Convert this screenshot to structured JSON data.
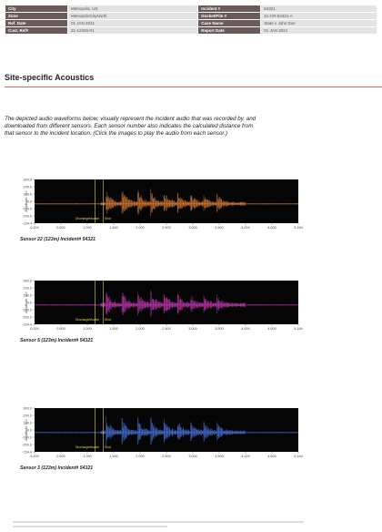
{
  "info_table": {
    "rows": [
      [
        "City",
        "Metropolis, US",
        "Incident #",
        "54321"
      ],
      [
        "Zone",
        "MetropolisCityNorth",
        "Docket/File #",
        "21-CR-54321-A"
      ],
      [
        "Ref. Date",
        "01 JAN 2021",
        "Case Name",
        "State v John Doe"
      ],
      [
        "Cust. Ref#",
        "21-12345-01",
        "Report Date",
        "01 JAN 2021"
      ]
    ]
  },
  "section": {
    "title": "Site-specific Acoustics",
    "intro_lines": [
      "The depicted audio waveforms below, visually represent the incident audio that was recorded by, and",
      "downloaded from different sensors.  Each sensor number also indicates the calculated distance from",
      "that sensor to the incident location. (Click the images to play the audio from each sensor.)"
    ]
  },
  "plots": [
    {
      "caption": "Sensor 22 (123m) Incident# 54321",
      "wave_color": "#f08a3c",
      "y_label": "Amplitude, mV",
      "marker_labels": [
        "DischargeMuzzle",
        "Shot"
      ],
      "yticks": [
        "300.0",
        "200.0",
        "100.0",
        "0.0",
        "-100.0",
        "-200.0",
        "-234.4"
      ],
      "xticks": [
        "0.000",
        "0.500",
        "1.000",
        "1.500",
        "2.000",
        "2.500",
        "3.000",
        "3.500",
        "4.000",
        "4.500",
        "5.184"
      ]
    },
    {
      "caption": "Sensor 5 (123m) Incident# 54321",
      "wave_color": "#d63fc4",
      "y_label": "Amplitude, mV",
      "marker_labels": [
        "DischargeMuzzle",
        "Shot"
      ],
      "yticks": [
        "300.0",
        "200.0",
        "100.0",
        "0.0",
        "-100.0",
        "-200.0",
        "-234.4"
      ],
      "xticks": [
        "0.000",
        "0.500",
        "1.000",
        "1.500",
        "2.000",
        "2.500",
        "3.000",
        "3.500",
        "4.000",
        "4.500",
        "5.184"
      ]
    },
    {
      "caption": "Sensor 3 (123m) Incident# 54321",
      "wave_color": "#4f7ff0",
      "y_label": "Amplitude, mV",
      "marker_labels": [
        "DischargeMuzzle",
        "Shot"
      ],
      "yticks": [
        "300.0",
        "200.0",
        "100.0",
        "0.0",
        "-100.0",
        "-200.0",
        "-234.4"
      ],
      "xticks": [
        "0.000",
        "0.500",
        "1.000",
        "1.500",
        "2.000",
        "2.500",
        "3.000",
        "3.500",
        "4.000",
        "4.500",
        "5.184"
      ]
    }
  ]
}
